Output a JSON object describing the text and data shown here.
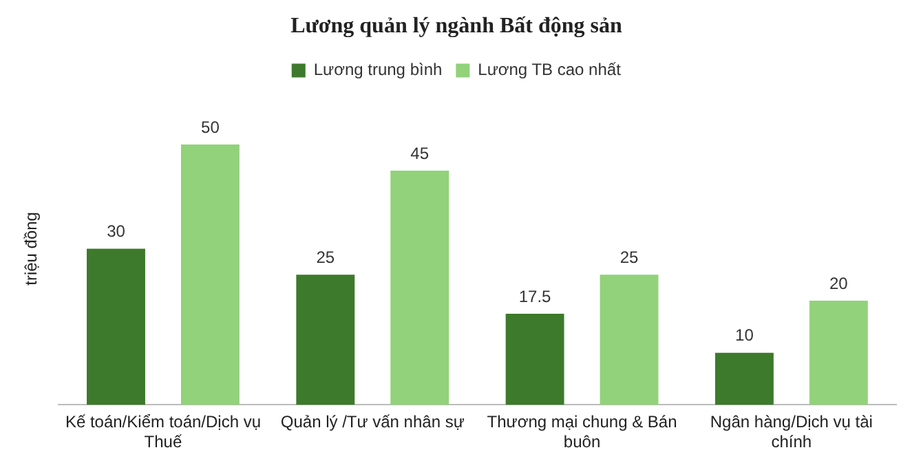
{
  "chart_data": {
    "type": "bar",
    "title": "Lương quản lý ngành Bất động sản",
    "ylabel": "triệu đồng",
    "categories": [
      "Kế toán/Kiểm toán/Dịch vụ Thuế",
      "Quản lý /Tư vấn nhân sự",
      "Thương mại chung & Bán buôn",
      "Ngân hàng/Dịch vụ tài chính"
    ],
    "series": [
      {
        "name": "Lương trung bình",
        "color": "#3d7a2b",
        "values": [
          30,
          25,
          17.5,
          10
        ]
      },
      {
        "name": "Lương TB cao nhất",
        "color": "#92d27a",
        "values": [
          50,
          45,
          25,
          20
        ]
      }
    ],
    "data_labels": true,
    "legend": "top",
    "grid": false
  }
}
